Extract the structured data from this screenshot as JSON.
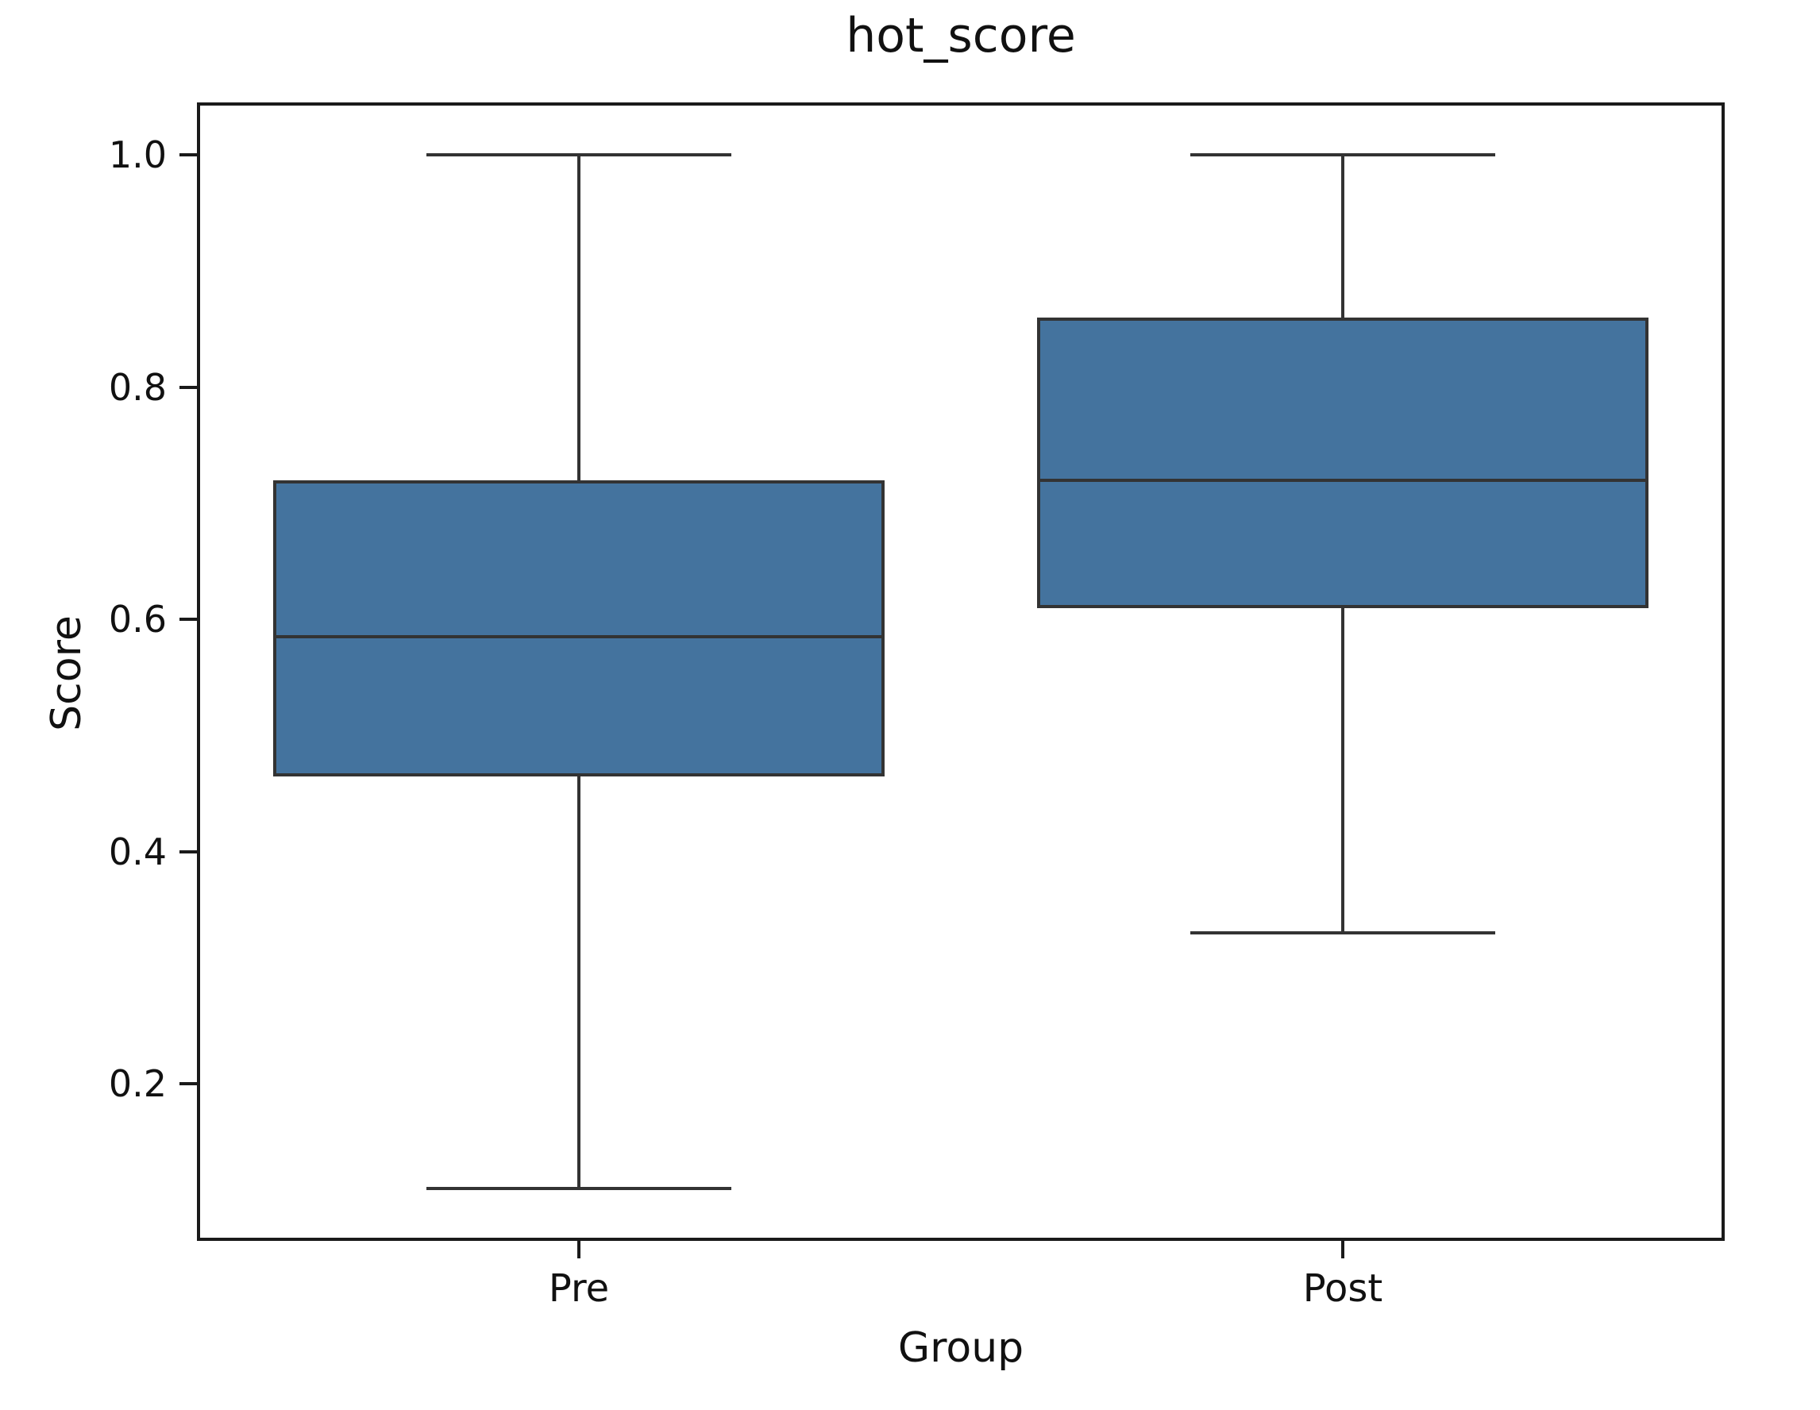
{
  "chart_data": {
    "type": "box",
    "title": "hot_score",
    "xlabel": "Group",
    "ylabel": "Score",
    "categories": [
      "Pre",
      "Post"
    ],
    "series": [
      {
        "name": "Pre",
        "whisker_low": 0.11,
        "q1": 0.465,
        "median": 0.585,
        "q3": 0.72,
        "whisker_high": 1.0
      },
      {
        "name": "Post",
        "whisker_low": 0.33,
        "q1": 0.61,
        "median": 0.72,
        "q3": 0.86,
        "whisker_high": 1.0
      }
    ],
    "yticks": [
      1.0,
      0.8,
      0.6,
      0.4,
      0.2
    ],
    "ytick_labels": [
      "1.0",
      "0.8",
      "0.6",
      "0.4",
      "0.2"
    ],
    "ylim": [
      0.065,
      1.045
    ],
    "grid": false,
    "legend": null,
    "colors": {
      "box_fill": "#44739E",
      "box_edge": "#333333",
      "axis": "#1a1a1a",
      "text": "#111111",
      "background": "#ffffff"
    }
  }
}
